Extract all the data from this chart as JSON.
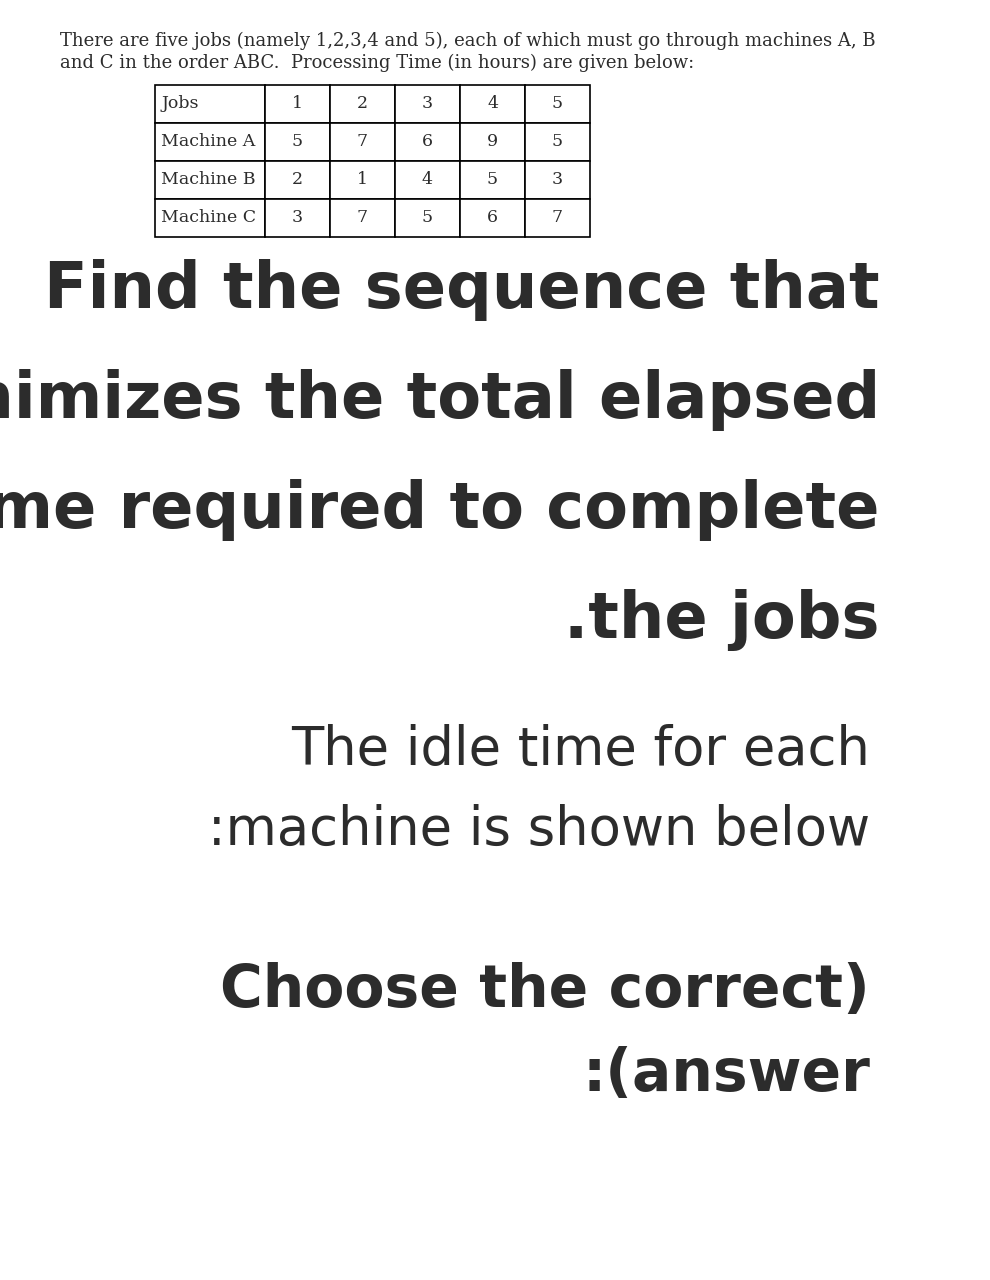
{
  "intro_line1": "There are five jobs (namely 1,2,3,4 and 5), each of which must go through machines A, B",
  "intro_line2": "and C in the order ABC.  Processing Time (in hours) are given below:",
  "table_headers": [
    "Jobs",
    "1",
    "2",
    "3",
    "4",
    "5"
  ],
  "table_rows": [
    [
      "Machine A",
      "5",
      "7",
      "6",
      "9",
      "5"
    ],
    [
      "Machine B",
      "2",
      "1",
      "4",
      "5",
      "3"
    ],
    [
      "Machine C",
      "3",
      "7",
      "5",
      "6",
      "7"
    ]
  ],
  "bold_text_lines": [
    "Find the sequence that",
    "minimizes the total elapsed",
    "time required to complete",
    ".the jobs"
  ],
  "regular_text_lines": [
    "The idle time for each",
    ":machine is shown below"
  ],
  "bold2_text_lines": [
    "Choose the correct)",
    ":(answer"
  ],
  "bg_color": "#ffffff",
  "text_color": "#2c2c2c",
  "table_border_color": "#000000",
  "intro_fontsize": 13,
  "bold_fontsize": 46,
  "regular_fontsize": 38,
  "bold2_fontsize": 42
}
